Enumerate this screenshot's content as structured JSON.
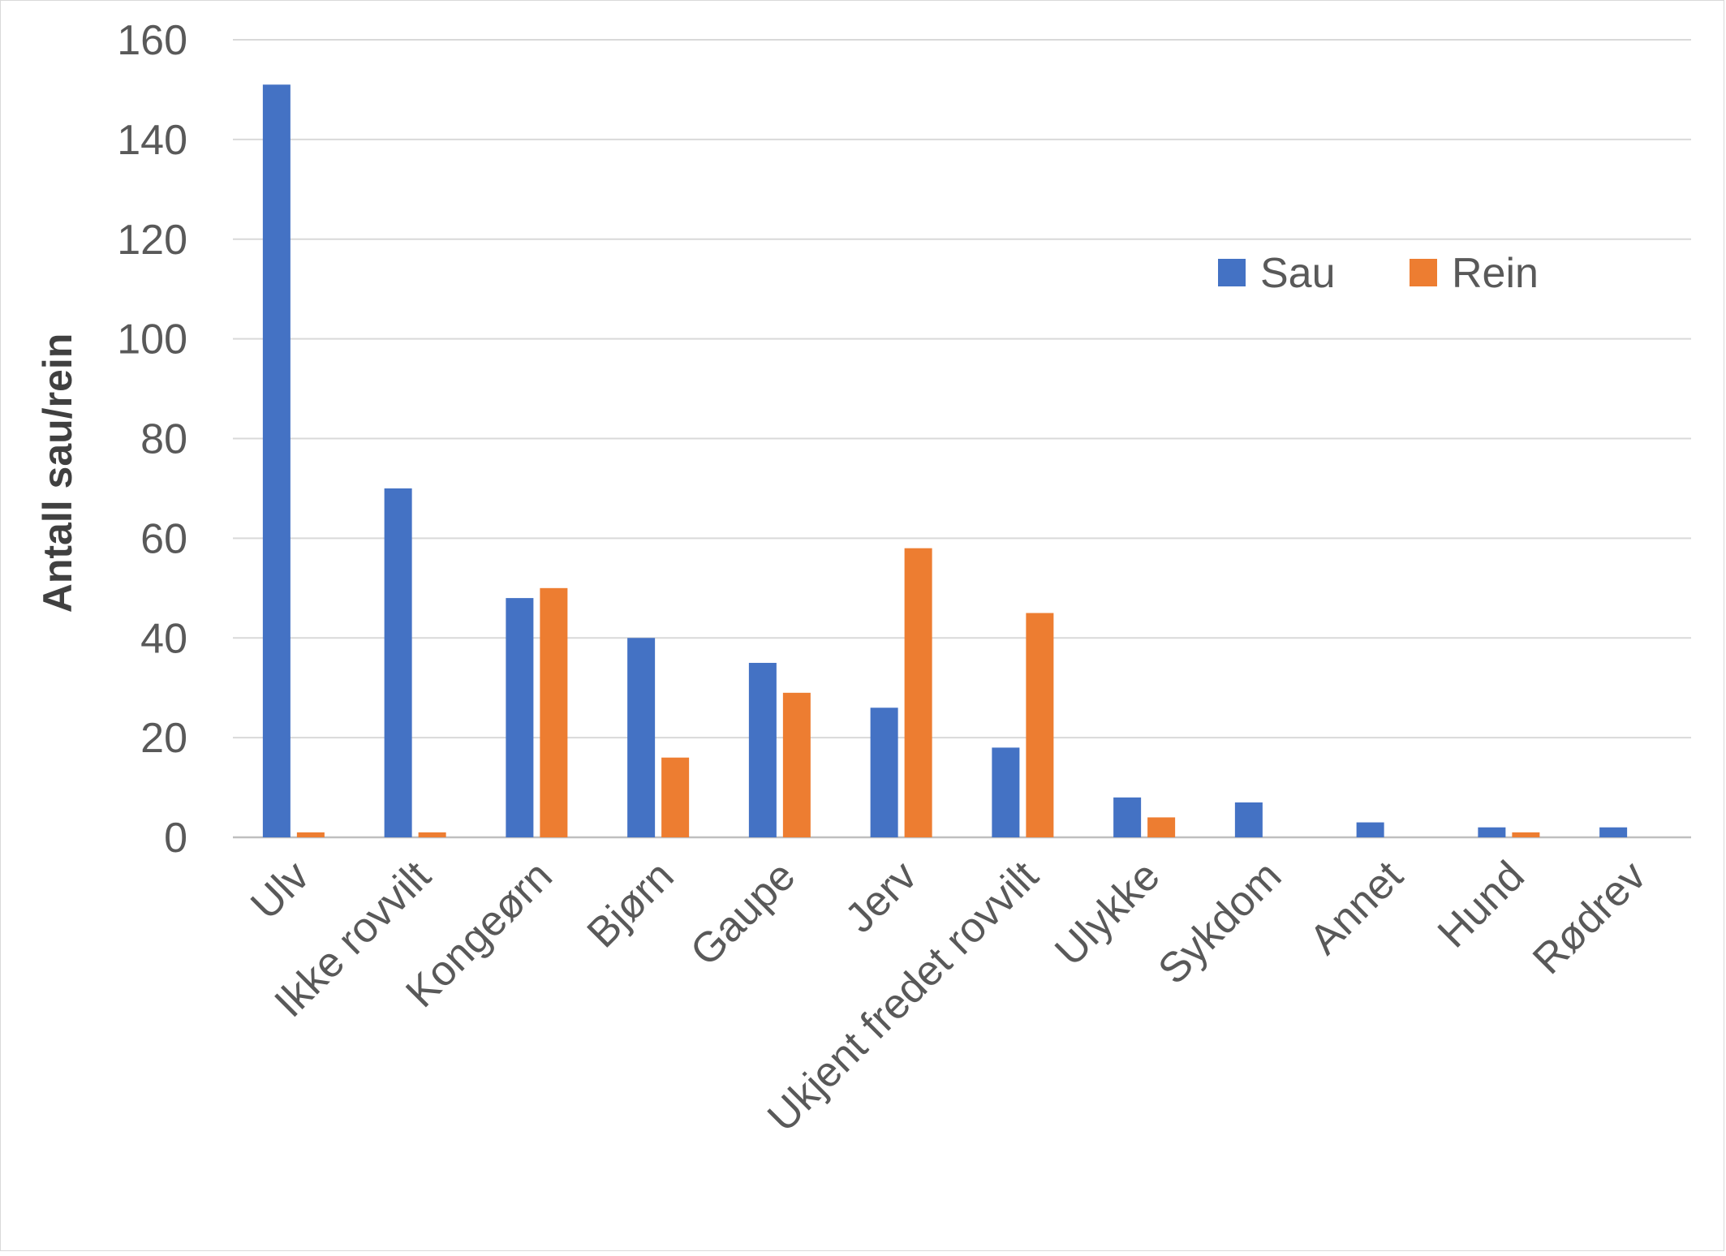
{
  "chart_data": {
    "type": "bar",
    "title": "",
    "xlabel": "",
    "ylabel": "Antall sau/rein",
    "ylim": [
      0,
      160
    ],
    "yticks": [
      0,
      20,
      40,
      60,
      80,
      100,
      120,
      140,
      160
    ],
    "grid": true,
    "legend_position": "top-right",
    "categories": [
      "Ulv",
      "Ikke rovvilt",
      "Kongeørn",
      "Bjørn",
      "Gaupe",
      "Jerv",
      "Ukjent fredet rovvilt",
      "Ulykke",
      "Sykdom",
      "Annet",
      "Hund",
      "Rødrev"
    ],
    "series": [
      {
        "name": "Sau",
        "color": "#4472c4",
        "values": [
          151,
          70,
          48,
          40,
          35,
          26,
          18,
          8,
          7,
          3,
          2,
          2
        ]
      },
      {
        "name": "Rein",
        "color": "#ed7d31",
        "values": [
          1,
          1,
          50,
          16,
          29,
          58,
          45,
          4,
          0,
          0,
          1,
          0
        ]
      }
    ]
  }
}
